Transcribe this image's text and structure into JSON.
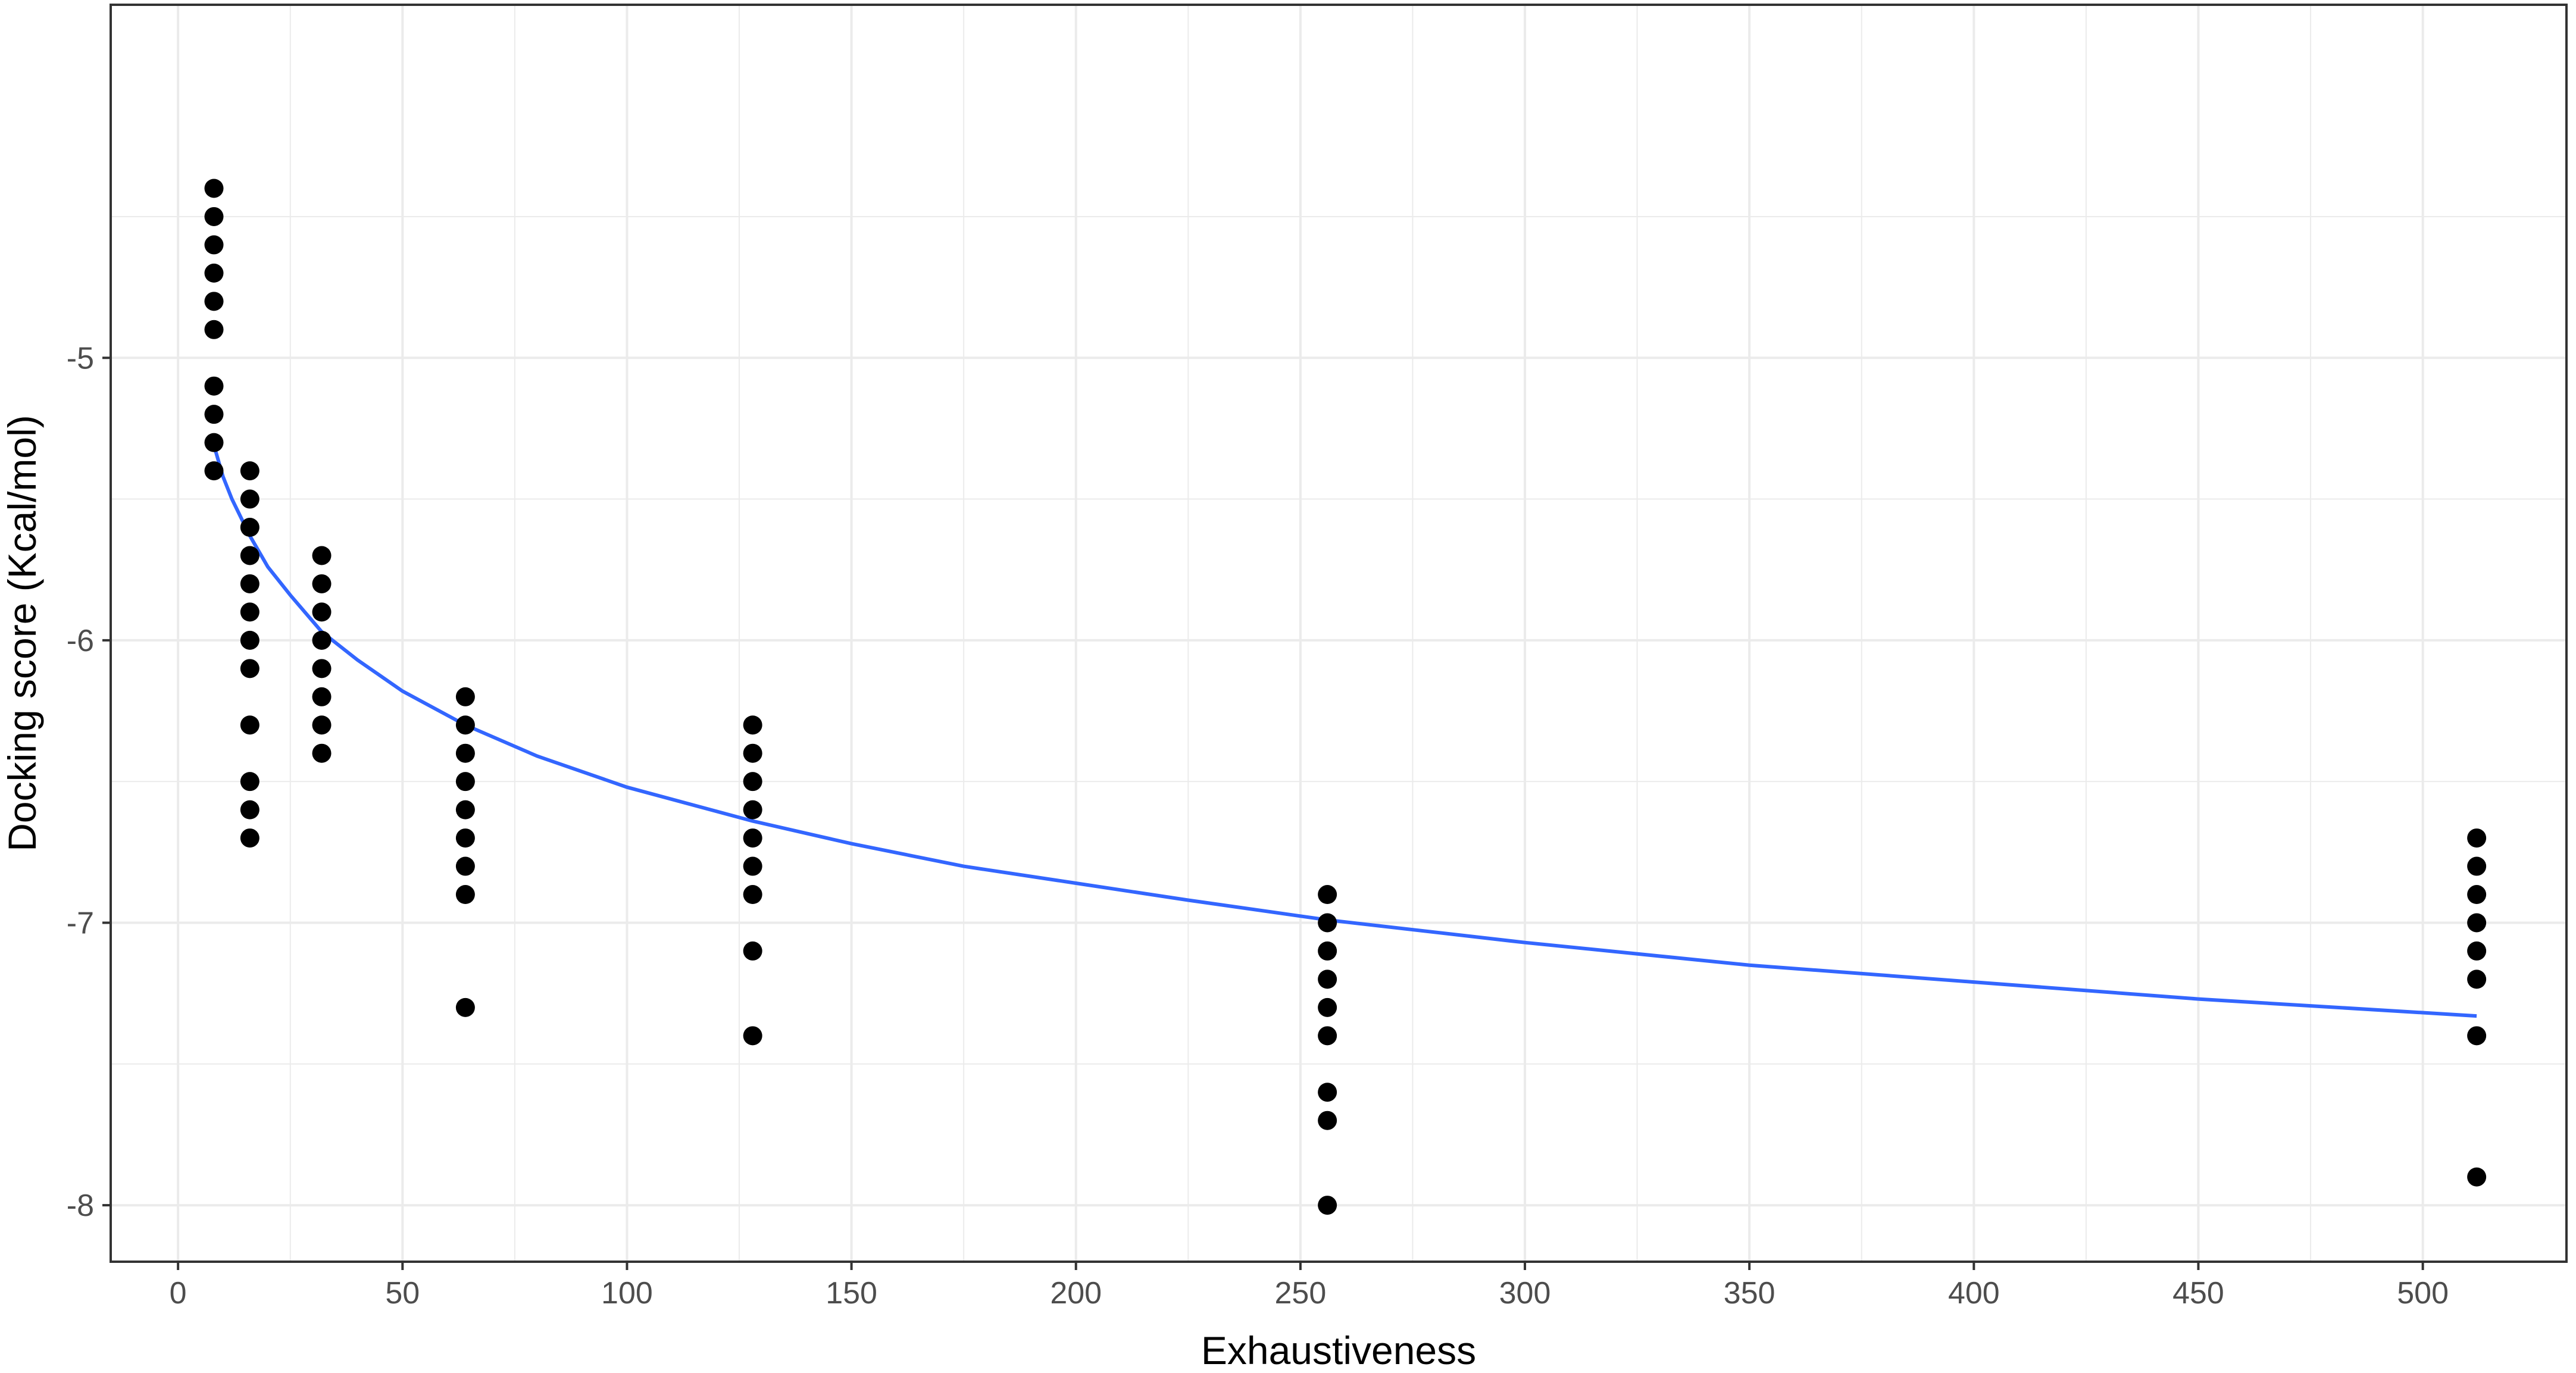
{
  "chart_data": {
    "type": "scatter",
    "title": "",
    "xlabel": "Exhaustiveness",
    "ylabel": "Docking score (Kcal/mol)",
    "xlim": [
      -15,
      532
    ],
    "ylim": [
      -8.2,
      -3.75
    ],
    "x_ticks": [
      0,
      50,
      100,
      150,
      200,
      250,
      300,
      350,
      400,
      450,
      500
    ],
    "x_tick_labels": [
      "0",
      "50",
      "100",
      "150",
      "200",
      "250",
      "300",
      "350",
      "400",
      "450",
      "500"
    ],
    "y_ticks": [
      -8,
      -7,
      -6,
      -5
    ],
    "y_tick_labels": [
      "-8",
      "-7",
      "-6",
      "-5"
    ],
    "grid": true,
    "legend": "none",
    "colors": {
      "points": "#000000",
      "trend": "#3366ff",
      "grid": "#ebebeb",
      "border": "#333333"
    },
    "series": [
      {
        "type": "scatter",
        "points": [
          {
            "x": 8,
            "y": -4.4
          },
          {
            "x": 8,
            "y": -4.5
          },
          {
            "x": 8,
            "y": -4.6
          },
          {
            "x": 8,
            "y": -4.7
          },
          {
            "x": 8,
            "y": -4.8
          },
          {
            "x": 8,
            "y": -4.9
          },
          {
            "x": 8,
            "y": -5.1
          },
          {
            "x": 8,
            "y": -5.2
          },
          {
            "x": 8,
            "y": -5.3
          },
          {
            "x": 8,
            "y": -5.4
          },
          {
            "x": 16,
            "y": -5.4
          },
          {
            "x": 16,
            "y": -5.5
          },
          {
            "x": 16,
            "y": -5.6
          },
          {
            "x": 16,
            "y": -5.7
          },
          {
            "x": 16,
            "y": -5.8
          },
          {
            "x": 16,
            "y": -5.9
          },
          {
            "x": 16,
            "y": -6.0
          },
          {
            "x": 16,
            "y": -6.1
          },
          {
            "x": 16,
            "y": -6.3
          },
          {
            "x": 16,
            "y": -6.5
          },
          {
            "x": 16,
            "y": -6.6
          },
          {
            "x": 16,
            "y": -6.7
          },
          {
            "x": 32,
            "y": -5.7
          },
          {
            "x": 32,
            "y": -5.8
          },
          {
            "x": 32,
            "y": -5.9
          },
          {
            "x": 32,
            "y": -6.0
          },
          {
            "x": 32,
            "y": -6.1
          },
          {
            "x": 32,
            "y": -6.2
          },
          {
            "x": 32,
            "y": -6.3
          },
          {
            "x": 32,
            "y": -6.4
          },
          {
            "x": 64,
            "y": -6.2
          },
          {
            "x": 64,
            "y": -6.3
          },
          {
            "x": 64,
            "y": -6.4
          },
          {
            "x": 64,
            "y": -6.5
          },
          {
            "x": 64,
            "y": -6.6
          },
          {
            "x": 64,
            "y": -6.7
          },
          {
            "x": 64,
            "y": -6.8
          },
          {
            "x": 64,
            "y": -6.9
          },
          {
            "x": 64,
            "y": -7.3
          },
          {
            "x": 128,
            "y": -6.3
          },
          {
            "x": 128,
            "y": -6.4
          },
          {
            "x": 128,
            "y": -6.5
          },
          {
            "x": 128,
            "y": -6.6
          },
          {
            "x": 128,
            "y": -6.7
          },
          {
            "x": 128,
            "y": -6.8
          },
          {
            "x": 128,
            "y": -6.9
          },
          {
            "x": 128,
            "y": -7.1
          },
          {
            "x": 128,
            "y": -7.4
          },
          {
            "x": 256,
            "y": -6.9
          },
          {
            "x": 256,
            "y": -7.0
          },
          {
            "x": 256,
            "y": -7.1
          },
          {
            "x": 256,
            "y": -7.2
          },
          {
            "x": 256,
            "y": -7.3
          },
          {
            "x": 256,
            "y": -7.4
          },
          {
            "x": 256,
            "y": -7.6
          },
          {
            "x": 256,
            "y": -7.7
          },
          {
            "x": 256,
            "y": -8.0
          },
          {
            "x": 512,
            "y": -6.7
          },
          {
            "x": 512,
            "y": -6.8
          },
          {
            "x": 512,
            "y": -6.9
          },
          {
            "x": 512,
            "y": -7.0
          },
          {
            "x": 512,
            "y": -7.1
          },
          {
            "x": 512,
            "y": -7.2
          },
          {
            "x": 512,
            "y": -7.4
          },
          {
            "x": 512,
            "y": -7.9
          }
        ]
      },
      {
        "type": "line",
        "points": [
          {
            "x": 8,
            "y": -5.31
          },
          {
            "x": 10,
            "y": -5.42
          },
          {
            "x": 12,
            "y": -5.5
          },
          {
            "x": 16,
            "y": -5.63
          },
          {
            "x": 20,
            "y": -5.74
          },
          {
            "x": 25,
            "y": -5.84
          },
          {
            "x": 32,
            "y": -5.97
          },
          {
            "x": 40,
            "y": -6.07
          },
          {
            "x": 50,
            "y": -6.18
          },
          {
            "x": 64,
            "y": -6.3
          },
          {
            "x": 80,
            "y": -6.41
          },
          {
            "x": 100,
            "y": -6.52
          },
          {
            "x": 128,
            "y": -6.64
          },
          {
            "x": 150,
            "y": -6.72
          },
          {
            "x": 175,
            "y": -6.8
          },
          {
            "x": 200,
            "y": -6.86
          },
          {
            "x": 225,
            "y": -6.92
          },
          {
            "x": 256,
            "y": -6.99
          },
          {
            "x": 300,
            "y": -7.07
          },
          {
            "x": 350,
            "y": -7.15
          },
          {
            "x": 400,
            "y": -7.21
          },
          {
            "x": 450,
            "y": -7.27
          },
          {
            "x": 512,
            "y": -7.33
          }
        ]
      }
    ]
  }
}
